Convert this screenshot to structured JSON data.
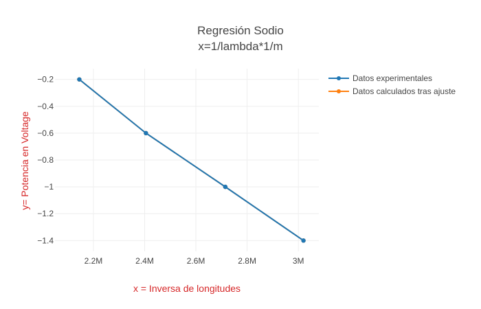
{
  "chart_data": {
    "type": "line",
    "title_lines": [
      "Regresión Sodio",
      "x=1/lambda*1/m"
    ],
    "xlabel": "x = Inversa de longitudes",
    "ylabel": "y= Potencia en Voltage",
    "axis_title_color": "#d62728",
    "xlim": [
      2050000,
      3080000
    ],
    "ylim": [
      -1.48,
      -0.12
    ],
    "x_ticks": [
      2200000,
      2400000,
      2600000,
      2800000,
      3000000
    ],
    "x_tick_labels": [
      "2.2M",
      "2.4M",
      "2.6M",
      "2.8M",
      "3M"
    ],
    "y_ticks": [
      -0.2,
      -0.4,
      -0.6,
      -0.8,
      -1.0,
      -1.2,
      -1.4
    ],
    "y_tick_labels": [
      "−0.2",
      "−0.4",
      "−0.6",
      "−0.8",
      "−1",
      "−1.2",
      "−1.4"
    ],
    "grid": true,
    "legend_position": "top-right",
    "series": [
      {
        "name": "Datos experimentales",
        "color": "#1f77b4",
        "x": [
          2145000,
          2405000,
          2715000,
          3020000
        ],
        "y": [
          -0.2,
          -0.6,
          -1.0,
          -1.4
        ]
      },
      {
        "name": "Datos calculados tras ajuste",
        "color": "#ff7f0e",
        "x": [
          2145000,
          2405000,
          2715000,
          3020000
        ],
        "y": [
          -0.2,
          -0.6,
          -1.0,
          -1.4
        ]
      }
    ]
  }
}
